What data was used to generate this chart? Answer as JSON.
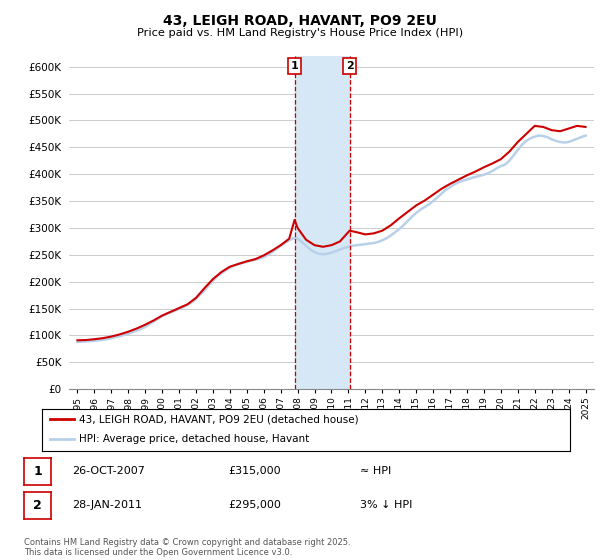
{
  "title": "43, LEIGH ROAD, HAVANT, PO9 2EU",
  "subtitle": "Price paid vs. HM Land Registry's House Price Index (HPI)",
  "yticks": [
    0,
    50000,
    100000,
    150000,
    200000,
    250000,
    300000,
    350000,
    400000,
    450000,
    500000,
    550000,
    600000
  ],
  "hpi_color": "#b8d0e8",
  "price_color": "#cc0000",
  "marker1_x": 2007.82,
  "marker2_x": 2011.07,
  "marker1_label": "1",
  "marker2_label": "2",
  "marker1_date": "26-OCT-2007",
  "marker1_price": "£315,000",
  "marker1_note": "≈ HPI",
  "marker2_date": "28-JAN-2011",
  "marker2_price": "£295,000",
  "marker2_note": "3% ↓ HPI",
  "legend_line1": "43, LEIGH ROAD, HAVANT, PO9 2EU (detached house)",
  "legend_line2": "HPI: Average price, detached house, Havant",
  "copyright": "Contains HM Land Registry data © Crown copyright and database right 2025.\nThis data is licensed under the Open Government Licence v3.0.",
  "background_color": "#ffffff",
  "grid_color": "#cccccc",
  "shaded_region_color": "#d6e8f5",
  "marker_box_color": "#cc0000",
  "xlim_left": 1994.5,
  "xlim_right": 2025.5,
  "ylim_top": 620000
}
